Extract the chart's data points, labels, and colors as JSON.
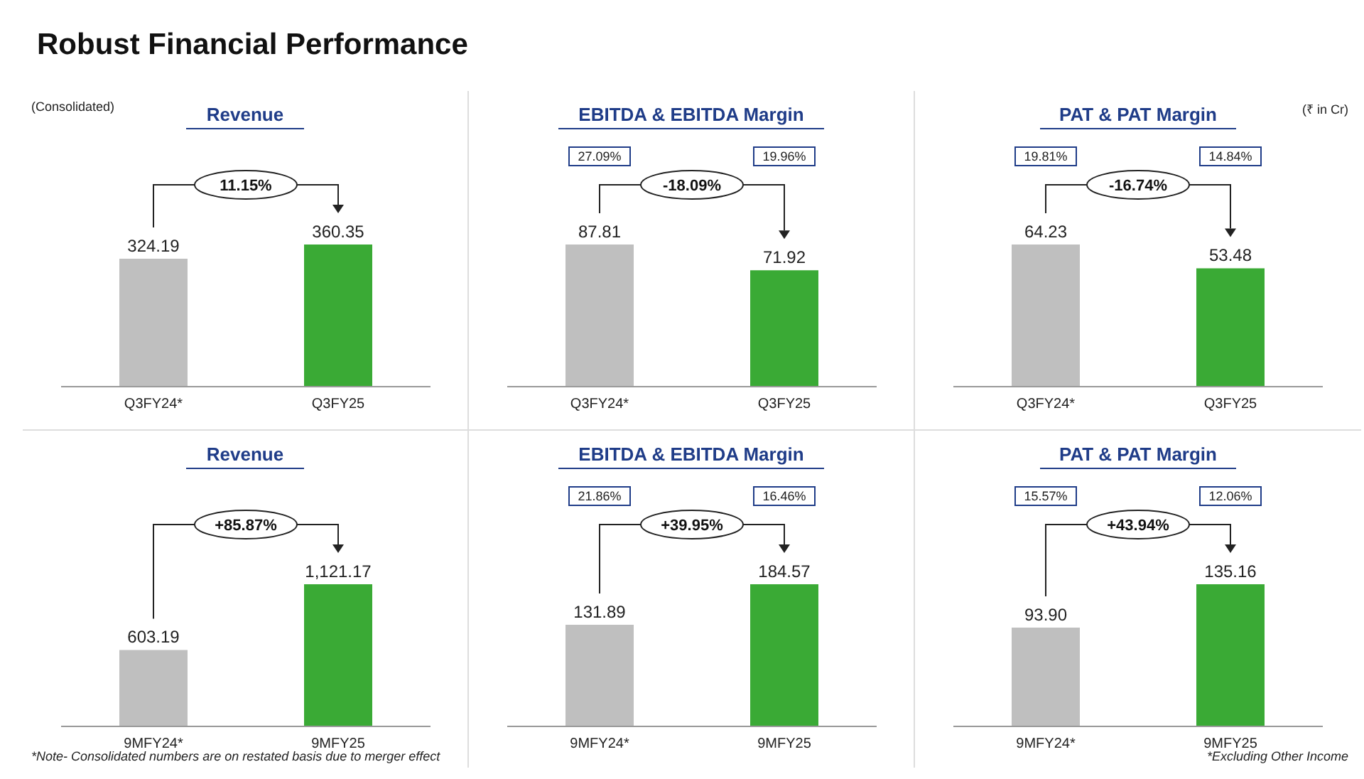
{
  "chart_data": [
    {
      "type": "bar",
      "title": "Revenue",
      "categories": [
        "Q3FY24*",
        "Q3FY25"
      ],
      "values": [
        324.19,
        360.35
      ],
      "colors": [
        "#bfbfbf",
        "#3aaa35"
      ],
      "value_labels": [
        "324.19",
        "360.35"
      ],
      "annotations": [
        "11.15%",
        "Robust Financial Performance",
        "(Consolidated)",
        "(₹ in Cr)"
      ]
    },
    {
      "type": "bar",
      "title": "EBITDA & EBITDA Margin",
      "categories": [
        "Q3FY24*",
        "Q3FY25"
      ],
      "values": [
        87.81,
        71.92
      ],
      "colors": [
        "#bfbfbf",
        "#3aaa35"
      ],
      "value_labels": [
        "87.81",
        "71.92"
      ],
      "annotations": [
        "-18.09%",
        "27.09%",
        "19.96%"
      ]
    },
    {
      "type": "bar",
      "title": "PAT & PAT Margin",
      "categories": [
        "Q3FY24*",
        "Q3FY25"
      ],
      "values": [
        64.23,
        53.48
      ],
      "colors": [
        "#bfbfbf",
        "#3aaa35"
      ],
      "value_labels": [
        "64.23",
        "53.48"
      ],
      "annotations": [
        "-16.74%",
        "19.81%",
        "14.84%"
      ]
    },
    {
      "type": "bar",
      "title": "Revenue",
      "categories": [
        "9MFY24*",
        "9MFY25"
      ],
      "values": [
        603.19,
        1121.17
      ],
      "colors": [
        "#bfbfbf",
        "#3aaa35"
      ],
      "value_labels": [
        "603.19",
        "1,121.17"
      ],
      "annotations": [
        "+85.87%",
        "*Note- Consolidated numbers are on restated basis due to merger effect",
        "*Excluding Other Income"
      ]
    },
    {
      "type": "bar",
      "title": "EBITDA & EBITDA Margin",
      "categories": [
        "9MFY24*",
        "9MFY25"
      ],
      "values": [
        131.89,
        184.57
      ],
      "colors": [
        "#bfbfbf",
        "#3aaa35"
      ],
      "value_labels": [
        "131.89",
        "184.57"
      ],
      "annotations": [
        "+39.95%",
        "21.86%",
        "16.46%"
      ]
    },
    {
      "type": "bar",
      "title": "PAT & PAT Margin",
      "categories": [
        "9MFY24*",
        "9MFY25"
      ],
      "values": [
        93.9,
        135.16
      ],
      "colors": [
        "#bfbfbf",
        "#3aaa35"
      ],
      "value_labels": [
        "93.90",
        "135.16"
      ],
      "annotations": [
        "+43.94%",
        "15.57%",
        "12.06%"
      ]
    }
  ]
}
